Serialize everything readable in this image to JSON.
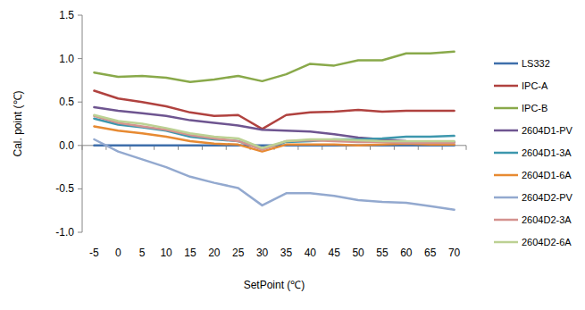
{
  "chart_data": {
    "type": "line",
    "x_label": "SetPoint (℃)",
    "y_label": "Cal. point (℃)",
    "categories": [
      "-5",
      "0",
      "5",
      "10",
      "15",
      "20",
      "25",
      "30",
      "35",
      "40",
      "45",
      "50",
      "55",
      "60",
      "65",
      "70"
    ],
    "series": [
      {
        "name": "LS332",
        "color": "#3f6fab",
        "values": [
          0,
          0,
          0,
          0,
          0,
          0,
          0,
          0,
          0,
          0,
          0,
          0,
          0,
          0,
          0,
          0
        ]
      },
      {
        "name": "IPC-A",
        "color": "#b0423f",
        "values": [
          0.63,
          0.54,
          0.5,
          0.45,
          0.38,
          0.34,
          0.35,
          0.19,
          0.35,
          0.38,
          0.39,
          0.41,
          0.39,
          0.4,
          0.4,
          0.4
        ]
      },
      {
        "name": "IPC-B",
        "color": "#89a94a",
        "values": [
          0.84,
          0.79,
          0.8,
          0.78,
          0.73,
          0.76,
          0.8,
          0.74,
          0.82,
          0.94,
          0.92,
          0.98,
          0.98,
          1.06,
          1.06,
          1.08
        ]
      },
      {
        "name": "2604D1-PV",
        "color": "#6e5590",
        "values": [
          0.44,
          0.4,
          0.37,
          0.34,
          0.29,
          0.26,
          0.23,
          0.18,
          0.17,
          0.16,
          0.13,
          0.09,
          0.07,
          0.05,
          0.04,
          0.04
        ]
      },
      {
        "name": "2604D1-3A",
        "color": "#3d97ad",
        "values": [
          0.31,
          0.24,
          0.21,
          0.17,
          0.1,
          0.07,
          0.05,
          -0.04,
          0.04,
          0.05,
          0.07,
          0.07,
          0.08,
          0.1,
          0.1,
          0.11
        ]
      },
      {
        "name": "2604D1-6A",
        "color": "#e78a32",
        "values": [
          0.22,
          0.17,
          0.14,
          0.1,
          0.05,
          0.02,
          0.01,
          -0.07,
          0.01,
          0.01,
          0.01,
          0.0,
          0.01,
          0.02,
          0.01,
          0.01
        ]
      },
      {
        "name": "2604D2-PV",
        "color": "#93a9cf",
        "values": [
          0.07,
          -0.07,
          -0.16,
          -0.25,
          -0.36,
          -0.43,
          -0.49,
          -0.69,
          -0.55,
          -0.55,
          -0.58,
          -0.63,
          -0.65,
          -0.66,
          -0.7,
          -0.74
        ]
      },
      {
        "name": "2604D2-3A",
        "color": "#d4928f",
        "values": [
          0.34,
          0.26,
          0.22,
          0.18,
          0.12,
          0.08,
          0.05,
          -0.05,
          0.05,
          0.06,
          0.05,
          0.04,
          0.04,
          0.03,
          0.03,
          0.03
        ]
      },
      {
        "name": "2604D2-6A",
        "color": "#bcd193",
        "values": [
          0.35,
          0.28,
          0.25,
          0.2,
          0.14,
          0.1,
          0.08,
          -0.03,
          0.05,
          0.07,
          0.07,
          0.06,
          0.05,
          0.05,
          0.05,
          0.05
        ]
      }
    ],
    "ylim": [
      -1.0,
      1.5
    ],
    "yticks": [
      {
        "value": -1,
        "label": "-1.0"
      },
      -0.5,
      {
        "value": 0,
        "label": "0.0"
      },
      0.5,
      {
        "value": 1,
        "label": "1.0"
      },
      1.5
    ],
    "grid": false,
    "legend": "right"
  }
}
